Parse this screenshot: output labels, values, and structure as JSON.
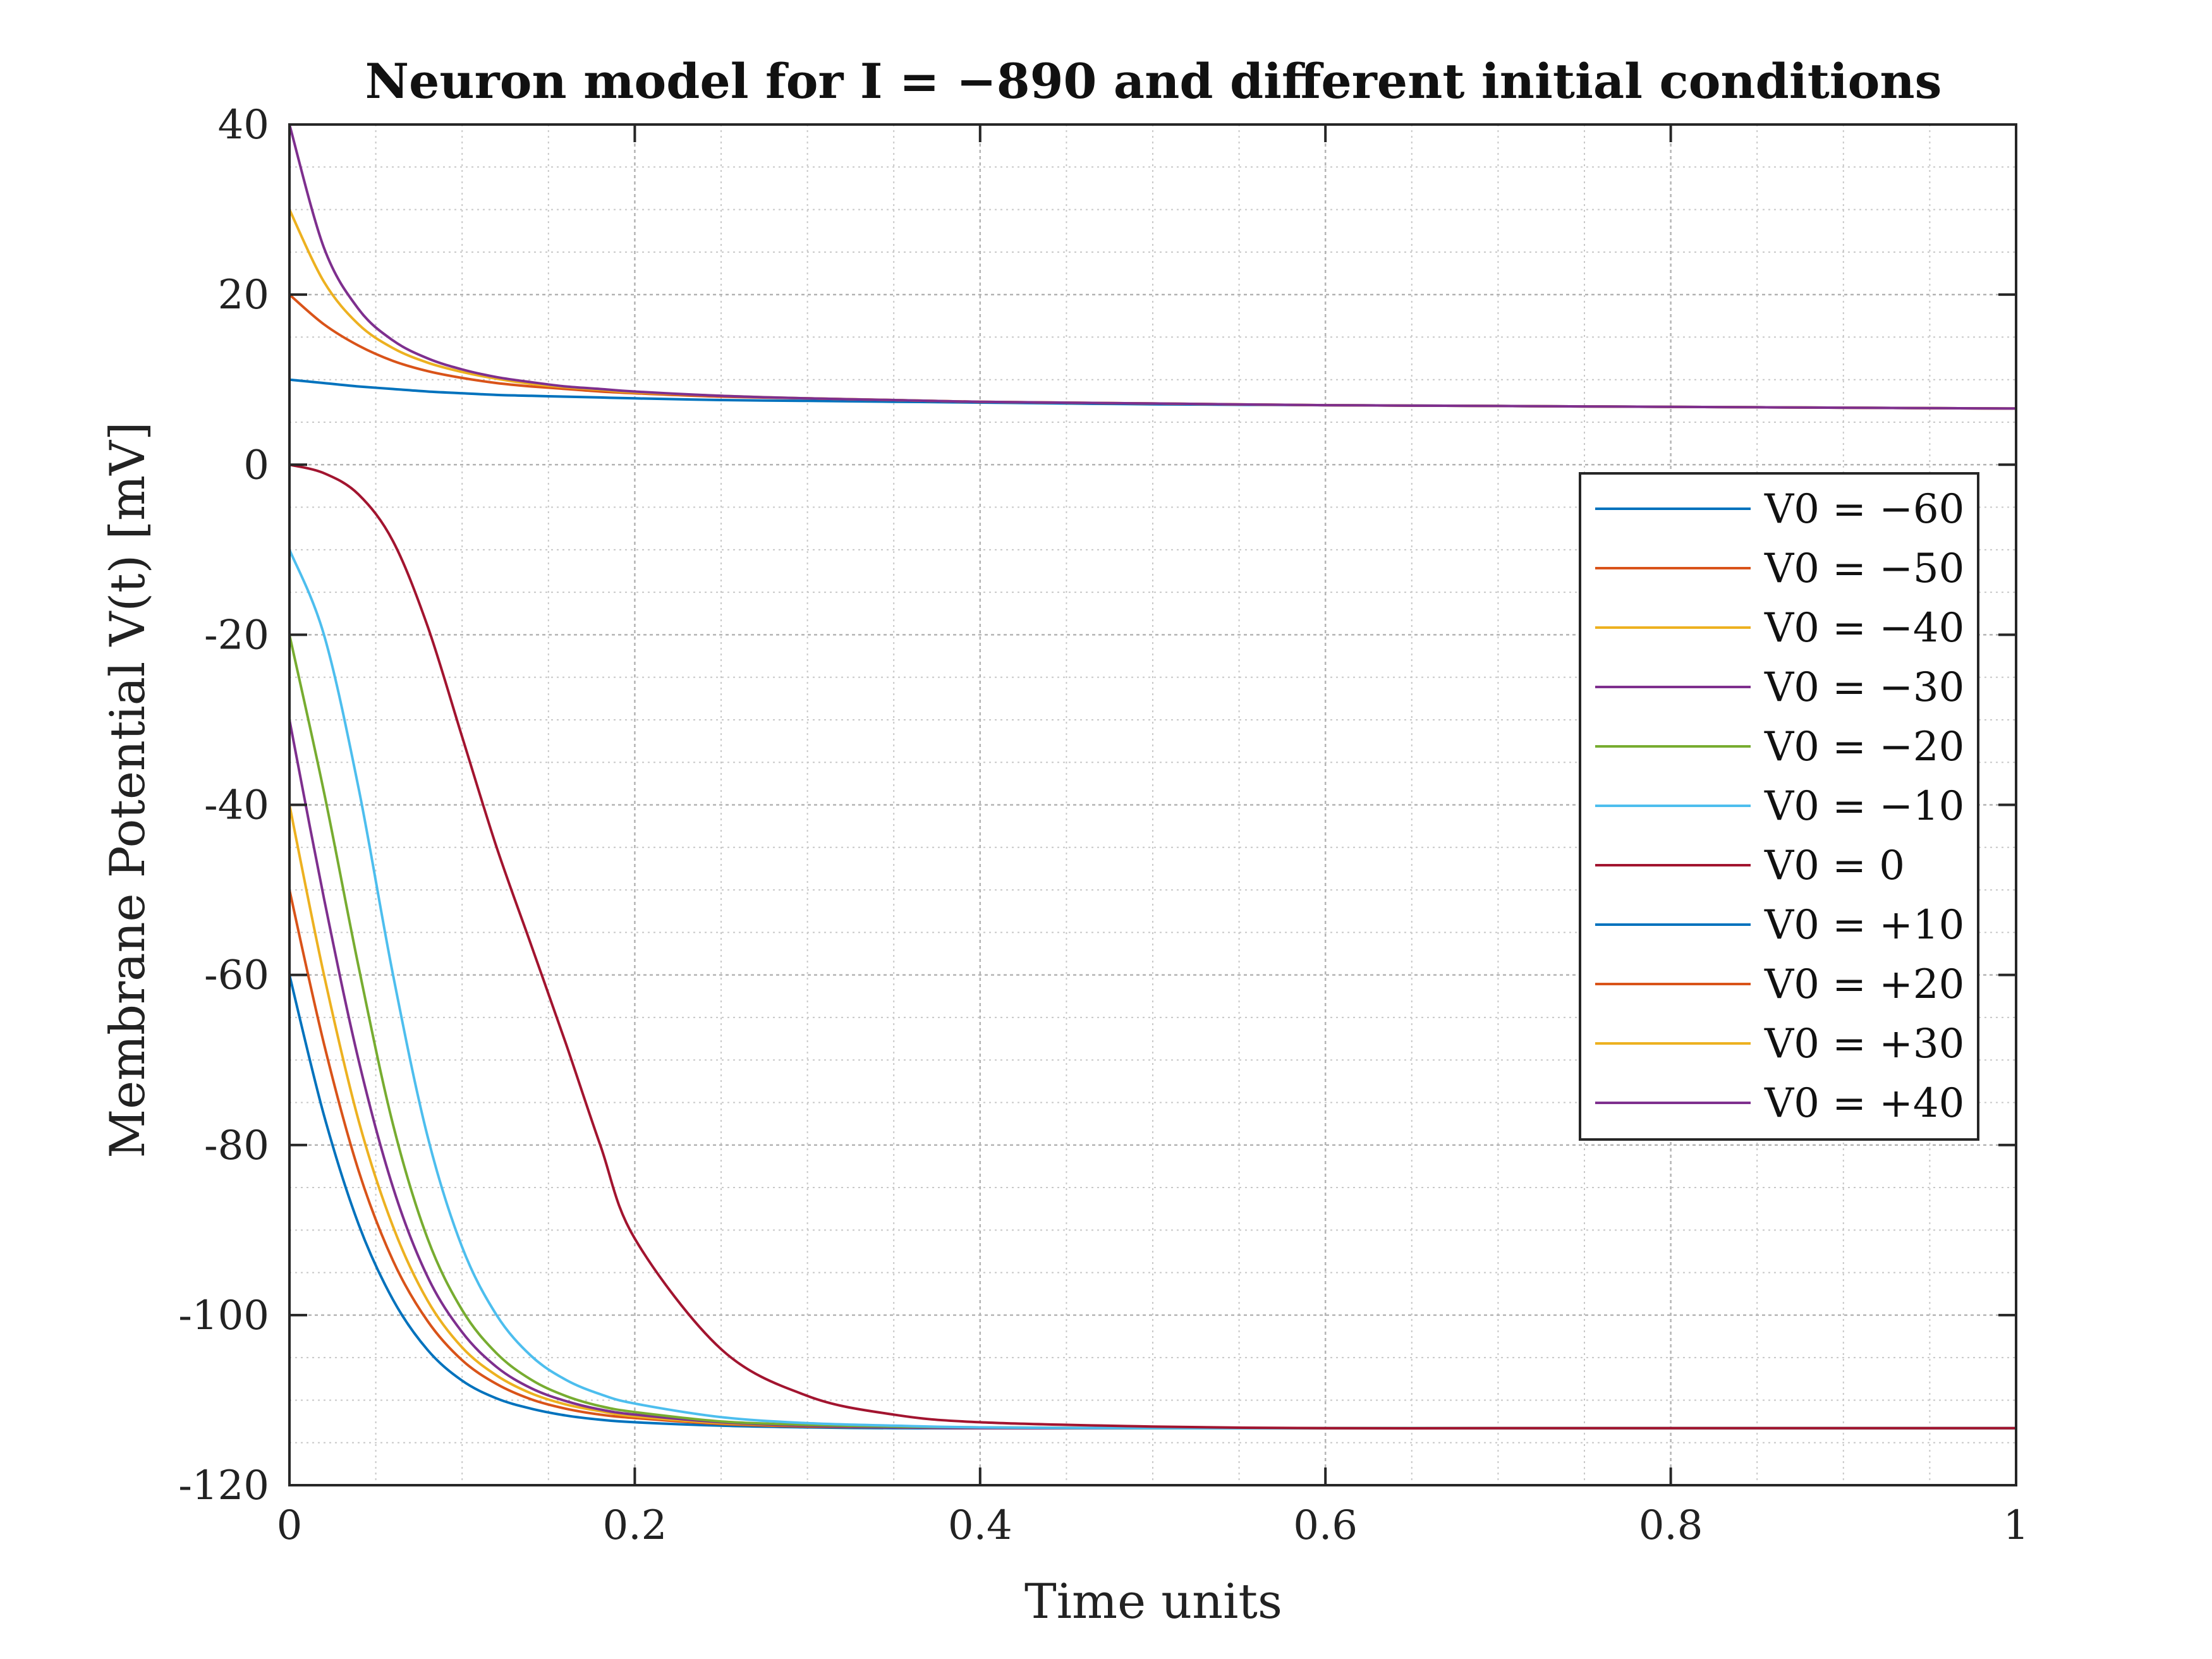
{
  "chart_data": {
    "type": "line",
    "title": "Neuron model for I = −890 and different initial conditions",
    "xlabel": "Time units",
    "ylabel": "Membrane Potential V(t) [mV]",
    "xlim": [
      0,
      1
    ],
    "ylim": [
      -120,
      40
    ],
    "xticks": [
      0,
      0.2,
      0.4,
      0.6,
      0.8,
      1
    ],
    "xtick_labels": [
      "0",
      "0.2",
      "0.4",
      "0.6",
      "0.8",
      "1"
    ],
    "yticks": [
      -120,
      -100,
      -80,
      -60,
      -40,
      -20,
      0,
      20,
      40
    ],
    "ytick_labels": [
      "-120",
      "-100",
      "-80",
      "-60",
      "-40",
      "-20",
      "0",
      "20",
      "40"
    ],
    "grid": true,
    "minor_grid": true,
    "legend_position": "right",
    "x": [
      0,
      0.02,
      0.04,
      0.06,
      0.08,
      0.1,
      0.12,
      0.14,
      0.16,
      0.18,
      0.2,
      0.25,
      0.3,
      0.35,
      0.4,
      0.5,
      0.6,
      0.7,
      0.8,
      0.9,
      1.0
    ],
    "series": [
      {
        "name": "V0 = −60",
        "color": "#0072BD",
        "values": [
          -60,
          -76.5,
          -89.3,
          -98.2,
          -104.1,
          -107.7,
          -109.8,
          -111.0,
          -111.8,
          -112.3,
          -112.6,
          -113.0,
          -113.2,
          -113.3,
          -113.3,
          -113.3,
          -113.3,
          -113.3,
          -113.3,
          -113.3,
          -113.3
        ]
      },
      {
        "name": "V0 = −50",
        "color": "#D95319",
        "values": [
          -50,
          -68.1,
          -83.0,
          -93.6,
          -100.7,
          -105.3,
          -108.1,
          -109.9,
          -111.0,
          -111.7,
          -112.1,
          -112.8,
          -113.1,
          -113.2,
          -113.3,
          -113.3,
          -113.3,
          -113.3,
          -113.3,
          -113.3,
          -113.3
        ]
      },
      {
        "name": "V0 = −40",
        "color": "#EDB120",
        "values": [
          -40,
          -60.0,
          -77.1,
          -89.6,
          -98.3,
          -103.8,
          -107.1,
          -109.2,
          -110.5,
          -111.3,
          -111.9,
          -112.7,
          -113.0,
          -113.2,
          -113.3,
          -113.3,
          -113.3,
          -113.3,
          -113.3,
          -113.3,
          -113.3
        ]
      },
      {
        "name": "V0 = −30",
        "color": "#7E2F8E",
        "values": [
          -30,
          -51.0,
          -70.0,
          -85.0,
          -95.5,
          -102.0,
          -106.1,
          -108.6,
          -110.1,
          -111.1,
          -111.7,
          -112.6,
          -113.0,
          -113.2,
          -113.3,
          -113.3,
          -113.3,
          -113.3,
          -113.3,
          -113.3,
          -113.3
        ]
      },
      {
        "name": "V0 = −20",
        "color": "#77AC30",
        "values": [
          -20,
          -38.5,
          -59.0,
          -77.6,
          -91.0,
          -99.4,
          -104.5,
          -107.6,
          -109.5,
          -110.7,
          -111.4,
          -112.5,
          -112.9,
          -113.1,
          -113.2,
          -113.3,
          -113.3,
          -113.3,
          -113.3,
          -113.3,
          -113.3
        ]
      },
      {
        "name": "V0 = −10",
        "color": "#4DBEEE",
        "values": [
          -10,
          -20.0,
          -38.0,
          -60.0,
          -79.0,
          -92.0,
          -100.0,
          -104.8,
          -107.6,
          -109.3,
          -110.4,
          -112.0,
          -112.7,
          -113.0,
          -113.2,
          -113.3,
          -113.3,
          -113.3,
          -113.3,
          -113.3,
          -113.3
        ]
      },
      {
        "name": "V0 = 0",
        "color": "#A2142F",
        "values": [
          0,
          -1.0,
          -3.5,
          -9.0,
          -19.0,
          -32.0,
          -45.0,
          -56.5,
          -68.0,
          -80.0,
          -91.0,
          -104.0,
          -109.5,
          -111.7,
          -112.6,
          -113.1,
          -113.3,
          -113.3,
          -113.3,
          -113.3,
          -113.3
        ]
      },
      {
        "name": "V0 = +10",
        "color": "#0072BD",
        "values": [
          10,
          9.6,
          9.2,
          8.9,
          8.6,
          8.4,
          8.2,
          8.1,
          8.0,
          7.9,
          7.8,
          7.6,
          7.5,
          7.4,
          7.3,
          7.1,
          7.0,
          6.9,
          6.8,
          6.7,
          6.6
        ]
      },
      {
        "name": "V0 = +20",
        "color": "#D95319",
        "values": [
          20,
          16.5,
          14.0,
          12.2,
          11.0,
          10.2,
          9.6,
          9.2,
          8.9,
          8.6,
          8.4,
          8.0,
          7.8,
          7.6,
          7.4,
          7.2,
          7.0,
          6.9,
          6.8,
          6.7,
          6.6
        ]
      },
      {
        "name": "V0 = +30",
        "color": "#EDB120",
        "values": [
          30,
          21.5,
          16.5,
          13.7,
          12.0,
          10.9,
          10.1,
          9.5,
          9.1,
          8.8,
          8.5,
          8.1,
          7.8,
          7.6,
          7.4,
          7.2,
          7.0,
          6.9,
          6.8,
          6.7,
          6.6
        ]
      },
      {
        "name": "V0 = +40",
        "color": "#7E2F8E",
        "values": [
          40,
          25.5,
          18.3,
          14.6,
          12.5,
          11.2,
          10.3,
          9.7,
          9.2,
          8.9,
          8.6,
          8.1,
          7.8,
          7.6,
          7.4,
          7.2,
          7.0,
          6.9,
          6.8,
          6.7,
          6.6
        ]
      }
    ]
  }
}
